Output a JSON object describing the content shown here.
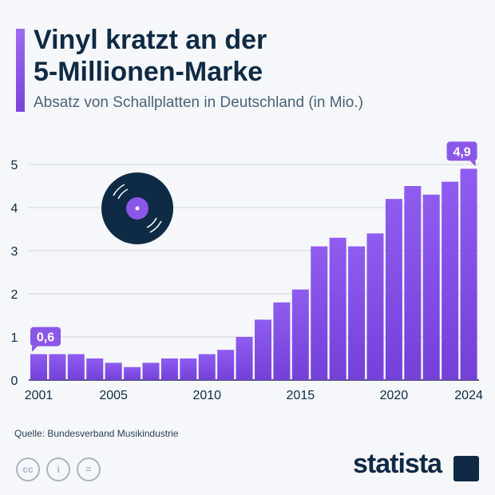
{
  "title": "Vinyl kratzt an der\n5-Millionen-Marke",
  "subtitle": "Absatz von Schallplatten in Deutschland (in Mio.)",
  "source": "Quelle: Bundesverband Musikindustrie",
  "brand": "statista",
  "colors": {
    "bar": "#8a57e8",
    "title": "#0f2a44",
    "background": "#f5f7fa"
  },
  "chart_data": {
    "type": "bar",
    "categories": [
      "2001",
      "2002",
      "2003",
      "2004",
      "2005",
      "2006",
      "2007",
      "2008",
      "2009",
      "2010",
      "2011",
      "2012",
      "2013",
      "2014",
      "2015",
      "2016",
      "2017",
      "2018",
      "2019",
      "2020",
      "2021",
      "2022",
      "2023",
      "2024"
    ],
    "values": [
      0.6,
      0.6,
      0.6,
      0.5,
      0.4,
      0.3,
      0.4,
      0.5,
      0.5,
      0.6,
      0.7,
      1.0,
      1.4,
      1.8,
      2.1,
      3.1,
      3.3,
      3.1,
      3.4,
      4.2,
      4.5,
      4.3,
      4.6,
      4.9
    ],
    "x_tick_labels": [
      "2001",
      "2005",
      "2010",
      "2015",
      "2020",
      "2024"
    ],
    "y_tick_labels": [
      "0",
      "1",
      "2",
      "3",
      "4",
      "5"
    ],
    "ylim": [
      0,
      5
    ],
    "grid": true,
    "annotations": [
      {
        "category": "2001",
        "label": "0,6"
      },
      {
        "category": "2024",
        "label": "4,9"
      }
    ]
  }
}
